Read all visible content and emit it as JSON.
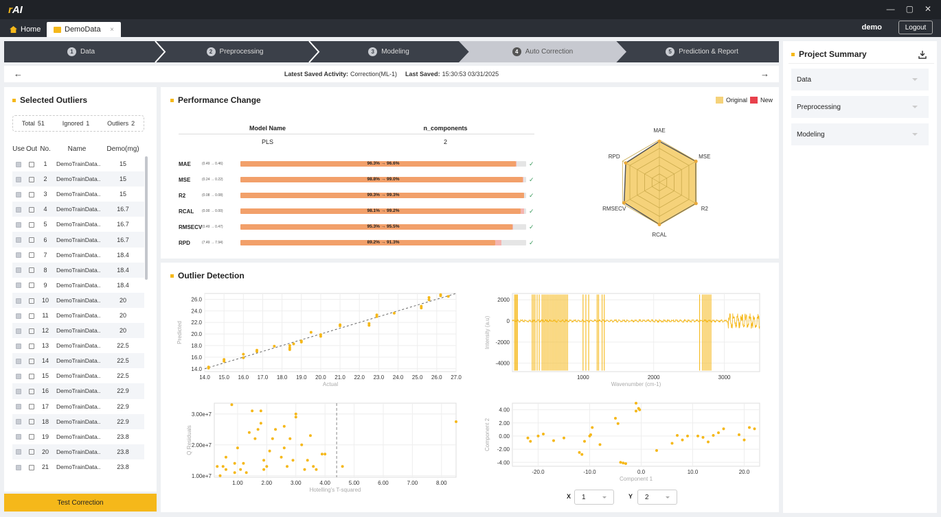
{
  "app": {
    "logo_a": "r",
    "logo_b": "AI",
    "win_min": "—",
    "win_max": "▢",
    "win_close": "✕"
  },
  "tabs": {
    "home": "Home",
    "demo": "DemoData",
    "close": "×"
  },
  "header": {
    "user": "demo",
    "logout": "Logout"
  },
  "steps": [
    {
      "num": "1",
      "label": "Data"
    },
    {
      "num": "2",
      "label": "Preprocessing"
    },
    {
      "num": "3",
      "label": "Modeling"
    },
    {
      "num": "4",
      "label": "Auto Correction"
    },
    {
      "num": "5",
      "label": "Prediction & Report"
    }
  ],
  "save": {
    "activity_label": "Latest Saved Activity:",
    "activity": "Correction(ML-1)",
    "saved_label": "Last Saved:",
    "saved": "15:30:53 03/31/2025",
    "back": "←",
    "fwd": "→"
  },
  "outliers": {
    "title": "Selected Outliers",
    "stats": {
      "total_label": "Total",
      "total": "51",
      "ignored_label": "Ignored",
      "ignored": "1",
      "outliers_label": "Outliers",
      "outliers": "2"
    },
    "cols": [
      "Use",
      "Out",
      "No.",
      "Name",
      "Demo(mg)"
    ],
    "rows": [
      {
        "no": "1",
        "name": "DemoTrainData..",
        "val": "15"
      },
      {
        "no": "2",
        "name": "DemoTrainData..",
        "val": "15"
      },
      {
        "no": "3",
        "name": "DemoTrainData..",
        "val": "15"
      },
      {
        "no": "4",
        "name": "DemoTrainData..",
        "val": "16.7"
      },
      {
        "no": "5",
        "name": "DemoTrainData..",
        "val": "16.7"
      },
      {
        "no": "6",
        "name": "DemoTrainData..",
        "val": "16.7"
      },
      {
        "no": "7",
        "name": "DemoTrainData..",
        "val": "18.4"
      },
      {
        "no": "8",
        "name": "DemoTrainData..",
        "val": "18.4"
      },
      {
        "no": "9",
        "name": "DemoTrainData..",
        "val": "18.4"
      },
      {
        "no": "10",
        "name": "DemoTrainData..",
        "val": "20"
      },
      {
        "no": "11",
        "name": "DemoTrainData..",
        "val": "20"
      },
      {
        "no": "12",
        "name": "DemoTrainData..",
        "val": "20"
      },
      {
        "no": "13",
        "name": "DemoTrainData..",
        "val": "22.5"
      },
      {
        "no": "14",
        "name": "DemoTrainData..",
        "val": "22.5"
      },
      {
        "no": "15",
        "name": "DemoTrainData..",
        "val": "22.5"
      },
      {
        "no": "16",
        "name": "DemoTrainData..",
        "val": "22.9"
      },
      {
        "no": "17",
        "name": "DemoTrainData..",
        "val": "22.9"
      },
      {
        "no": "18",
        "name": "DemoTrainData..",
        "val": "22.9"
      },
      {
        "no": "19",
        "name": "DemoTrainData..",
        "val": "23.8"
      },
      {
        "no": "20",
        "name": "DemoTrainData..",
        "val": "23.8"
      },
      {
        "no": "21",
        "name": "DemoTrainData..",
        "val": "23.8"
      }
    ],
    "test_button": "Test Correction"
  },
  "performance": {
    "title": "Performance Change",
    "legend": {
      "original": "Original",
      "new": "New",
      "original_color": "#f5d27a",
      "new_color": "#e8414c"
    },
    "table": {
      "col1": "Model Name",
      "col2": "n_components",
      "val1": "PLS",
      "val2": "2"
    },
    "metrics": [
      {
        "name": "MAE",
        "range": "(0.49 → 0.46)",
        "label": "96.3% → 96.6%",
        "orig": 0.963,
        "new": 0.966
      },
      {
        "name": "MSE",
        "range": "(0.24 → 0.22)",
        "label": "98.8% → 99.0%",
        "orig": 0.988,
        "new": 0.99
      },
      {
        "name": "R2",
        "range": "(0.08 → 0.08)",
        "label": "99.3% → 99.3%",
        "orig": 0.993,
        "new": 0.993
      },
      {
        "name": "RCAL",
        "range": "(0.00 → 0.00)",
        "label": "98.1% → 99.2%",
        "orig": 0.981,
        "new": 0.992
      },
      {
        "name": "RMSECV",
        "range": "(0.49 → 0.47)",
        "label": "95.3% → 95.5%",
        "orig": 0.953,
        "new": 0.955
      },
      {
        "name": "RPD",
        "range": "(7.49 → 7.94)",
        "label": "89.2% → 91.3%",
        "orig": 0.892,
        "new": 0.913
      }
    ],
    "radar_axes": [
      "MAE",
      "MSE",
      "R2",
      "RCAL",
      "RMSECV",
      "RPD"
    ]
  },
  "detection": {
    "title": "Outlier Detection",
    "sel_x_label": "X",
    "sel_x": "1",
    "sel_y_label": "Y",
    "sel_y": "2"
  },
  "chart_data": [
    {
      "type": "scatter",
      "xlabel": "Actual",
      "ylabel": "Predicted",
      "xlim": [
        14.0,
        27.0
      ],
      "ylim": [
        13.5,
        27.0
      ],
      "xticks": [
        "14.0",
        "15.0",
        "16.0",
        "17.0",
        "18.0",
        "19.0",
        "20.0",
        "21.0",
        "22.0",
        "23.0",
        "24.0",
        "25.0",
        "26.0",
        "27.0"
      ],
      "yticks": [
        "14.0",
        "16.0",
        "18.0",
        "20.0",
        "22.0",
        "24.0",
        "26.0"
      ],
      "points": [
        [
          14.2,
          14.1
        ],
        [
          14.2,
          14.3
        ],
        [
          15.0,
          15.3
        ],
        [
          15.0,
          15.6
        ],
        [
          16.0,
          15.9
        ],
        [
          16.0,
          16.5
        ],
        [
          16.7,
          17.0
        ],
        [
          16.7,
          17.2
        ],
        [
          17.6,
          17.9
        ],
        [
          18.4,
          17.6
        ],
        [
          18.4,
          17.3
        ],
        [
          18.4,
          18.0
        ],
        [
          18.6,
          18.3
        ],
        [
          19.0,
          18.6
        ],
        [
          19.0,
          18.8
        ],
        [
          19.5,
          20.3
        ],
        [
          20.0,
          19.6
        ],
        [
          20.0,
          19.9
        ],
        [
          21.0,
          21.6
        ],
        [
          21.0,
          21.4
        ],
        [
          22.5,
          21.5
        ],
        [
          22.5,
          21.8
        ],
        [
          22.9,
          23.0
        ],
        [
          22.9,
          23.3
        ],
        [
          23.8,
          23.6
        ],
        [
          25.2,
          24.5
        ],
        [
          25.2,
          24.8
        ],
        [
          25.6,
          26.3
        ],
        [
          25.6,
          25.9
        ],
        [
          26.2,
          26.6
        ],
        [
          26.2,
          26.8
        ],
        [
          26.6,
          26.5
        ]
      ]
    },
    {
      "type": "line",
      "xlabel": "Wavenumber (cm-1)",
      "ylabel": "Intensity (a.u)",
      "xlim": [
        0,
        3500
      ],
      "ylim": [
        -4800,
        2600
      ],
      "xticks": [
        "1000",
        "2000",
        "3000"
      ],
      "yticks": [
        "2000",
        "0",
        "-2000",
        "-4000"
      ]
    },
    {
      "type": "scatter",
      "xlabel": "Hotelling's T-squared",
      "ylabel": "Q Residuals",
      "xlim": [
        0.2,
        8.5
      ],
      "ylim": [
        9500000.0,
        33500000.0
      ],
      "xticks": [
        "1.00",
        "2.00",
        "3.00",
        "4.00",
        "5.00",
        "6.00",
        "7.00",
        "8.00"
      ],
      "yticks": [
        "3.00e+7",
        "2.00e+7",
        "1.00e+7"
      ],
      "threshold_x": 4.4,
      "points": [
        [
          0.3,
          13000000.0
        ],
        [
          0.4,
          10000000.0
        ],
        [
          0.5,
          13000000.0
        ],
        [
          0.6,
          16000000.0
        ],
        [
          0.6,
          12000000.0
        ],
        [
          0.8,
          33000000.0
        ],
        [
          0.9,
          11000000.0
        ],
        [
          0.9,
          14000000.0
        ],
        [
          1.0,
          19000000.0
        ],
        [
          1.1,
          12000000.0
        ],
        [
          1.2,
          14000000.0
        ],
        [
          1.3,
          11000000.0
        ],
        [
          1.4,
          24000000.0
        ],
        [
          1.5,
          31000000.0
        ],
        [
          1.6,
          22000000.0
        ],
        [
          1.7,
          25000000.0
        ],
        [
          1.8,
          27000000.0
        ],
        [
          1.8,
          31000000.0
        ],
        [
          1.9,
          12000000.0
        ],
        [
          1.9,
          15000000.0
        ],
        [
          2.0,
          13000000.0
        ],
        [
          2.1,
          18000000.0
        ],
        [
          2.2,
          22000000.0
        ],
        [
          2.3,
          25000000.0
        ],
        [
          2.5,
          16000000.0
        ],
        [
          2.6,
          19000000.0
        ],
        [
          2.6,
          26000000.0
        ],
        [
          2.7,
          13000000.0
        ],
        [
          2.8,
          22000000.0
        ],
        [
          2.9,
          15000000.0
        ],
        [
          3.0,
          30000000.0
        ],
        [
          3.0,
          29000000.0
        ],
        [
          3.2,
          20000000.0
        ],
        [
          3.3,
          12000000.0
        ],
        [
          3.4,
          15000000.0
        ],
        [
          3.5,
          23000000.0
        ],
        [
          3.6,
          13000000.0
        ],
        [
          3.7,
          12000000.0
        ],
        [
          3.9,
          17000000.0
        ],
        [
          4.0,
          17000000.0
        ],
        [
          4.6,
          13000000.0
        ],
        [
          8.5,
          27500000.0
        ]
      ]
    },
    {
      "type": "scatter",
      "xlabel": "Component 1",
      "ylabel": "Component 2",
      "xlim": [
        -25,
        23
      ],
      "ylim": [
        -4.6,
        5.0
      ],
      "xticks": [
        "-20.0",
        "-10.0",
        "0.0",
        "10.0",
        "20.0"
      ],
      "yticks": [
        "4.00",
        "2.00",
        "0.00",
        "-2.00",
        "-4.00"
      ],
      "points": [
        [
          -22,
          -0.3
        ],
        [
          -21.5,
          -0.8
        ],
        [
          -20,
          0
        ],
        [
          -19,
          0.3
        ],
        [
          -17,
          -0.7
        ],
        [
          -15,
          -0.3
        ],
        [
          -12,
          -2.5
        ],
        [
          -11.5,
          -2.8
        ],
        [
          -11,
          -0.8
        ],
        [
          -10,
          0
        ],
        [
          -9.5,
          1.3
        ],
        [
          -9.8,
          0.2
        ],
        [
          -8,
          -1.3
        ],
        [
          -5,
          2.7
        ],
        [
          -4.5,
          1.9
        ],
        [
          -4,
          -4
        ],
        [
          -3.5,
          -4.1
        ],
        [
          -3,
          -4.2
        ],
        [
          -1,
          3.8
        ],
        [
          -0.5,
          4.2
        ],
        [
          -0.3,
          4.0
        ],
        [
          -1,
          5
        ],
        [
          3,
          -2.2
        ],
        [
          6,
          -1.1
        ],
        [
          7,
          0.1
        ],
        [
          8,
          -0.6
        ],
        [
          9,
          0
        ],
        [
          11,
          0
        ],
        [
          12,
          -0.2
        ],
        [
          13,
          -0.9
        ],
        [
          14,
          0.1
        ],
        [
          15,
          0.5
        ],
        [
          16,
          1.1
        ],
        [
          19,
          0.2
        ],
        [
          20,
          -0.6
        ],
        [
          21,
          1.3
        ],
        [
          22,
          1.1
        ]
      ]
    }
  ],
  "summary": {
    "title": "Project Summary",
    "items": [
      "Data",
      "Preprocessing",
      "Modeling"
    ]
  }
}
